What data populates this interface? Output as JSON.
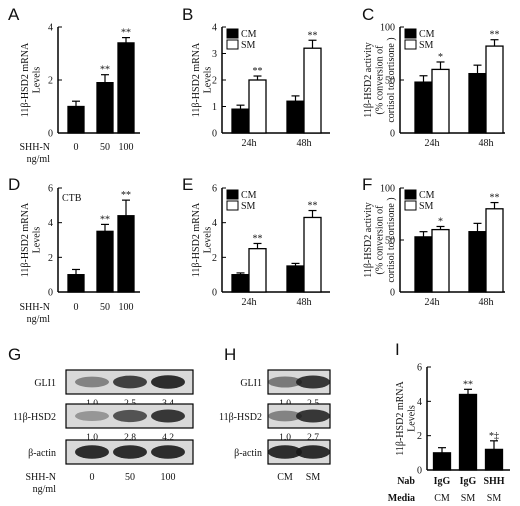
{
  "colors": {
    "filled": "#000000",
    "open": "#ffffff",
    "blot_bg": "#d9d9d9",
    "blot_band": "#1a1a1a"
  },
  "chart_data": [
    {
      "panel": "A",
      "type": "bar",
      "categories": [
        "0",
        "50",
        "100"
      ],
      "values": [
        1.0,
        1.9,
        3.4
      ],
      "errors": [
        0.2,
        0.3,
        0.2
      ],
      "significance": [
        "",
        "**",
        "**"
      ],
      "ylabel_lines": [
        "11β-HSD2 mRNA",
        "Levels"
      ],
      "ylim": [
        0,
        4
      ],
      "yticks": [
        "0",
        "2",
        "4"
      ],
      "xlabel_lines": [
        "SHH-N",
        "ng/ml"
      ],
      "annotation": ""
    },
    {
      "panel": "B",
      "type": "bar",
      "categories": [
        "24h",
        "48h"
      ],
      "series": [
        {
          "name": "CM",
          "values": [
            0.9,
            1.2
          ],
          "errors": [
            0.15,
            0.2
          ],
          "significance": [
            "",
            ""
          ]
        },
        {
          "name": "SM",
          "values": [
            2.0,
            3.2
          ],
          "errors": [
            0.15,
            0.3
          ],
          "significance": [
            "**",
            "**"
          ]
        }
      ],
      "ylabel_lines": [
        "11β-HSD2 mRNA",
        "Levels"
      ],
      "ylim": [
        0,
        4
      ],
      "yticks": [
        "0",
        "1",
        "2",
        "3",
        "4"
      ],
      "legend_position": "top-left"
    },
    {
      "panel": "C",
      "type": "bar",
      "categories": [
        "24h",
        "48h"
      ],
      "series": [
        {
          "name": "CM",
          "values": [
            48,
            56
          ],
          "errors": [
            6,
            8
          ],
          "significance": [
            "",
            ""
          ]
        },
        {
          "name": "SM",
          "values": [
            60,
            82
          ],
          "errors": [
            7,
            6
          ],
          "significance": [
            "*",
            "**"
          ]
        }
      ],
      "ylabel_lines": [
        "11β-HSD2 activity",
        "(% conversion of",
        "cortisol to cortisone )"
      ],
      "ylim": [
        0,
        100
      ],
      "yticks": [
        "0",
        "50",
        "100"
      ],
      "legend_position": "top-left"
    },
    {
      "panel": "D",
      "type": "bar",
      "categories": [
        "0",
        "50",
        "100"
      ],
      "values": [
        1.0,
        3.5,
        4.4
      ],
      "errors": [
        0.3,
        0.4,
        0.9
      ],
      "significance": [
        "",
        "**",
        "**"
      ],
      "ylabel_lines": [
        "11β-HSD2 mRNA",
        "Levels"
      ],
      "ylim": [
        0,
        6
      ],
      "yticks": [
        "0",
        "2",
        "4",
        "6"
      ],
      "xlabel_lines": [
        "SHH-N",
        "ng/ml"
      ],
      "annotation": "CTB"
    },
    {
      "panel": "E",
      "type": "bar",
      "categories": [
        "24h",
        "48h"
      ],
      "series": [
        {
          "name": "CM",
          "values": [
            1.0,
            1.5
          ],
          "errors": [
            0.1,
            0.15
          ],
          "significance": [
            "",
            ""
          ]
        },
        {
          "name": "SM",
          "values": [
            2.5,
            4.3
          ],
          "errors": [
            0.3,
            0.4
          ],
          "significance": [
            "**",
            "**"
          ]
        }
      ],
      "ylabel_lines": [
        "11β-HSD2 mRNA",
        "Levels"
      ],
      "ylim": [
        0,
        6
      ],
      "yticks": [
        "0",
        "2",
        "4",
        "6"
      ],
      "legend_position": "top-left"
    },
    {
      "panel": "F",
      "type": "bar",
      "categories": [
        "24h",
        "48h"
      ],
      "series": [
        {
          "name": "CM",
          "values": [
            53,
            58
          ],
          "errors": [
            5,
            8
          ],
          "significance": [
            "",
            ""
          ]
        },
        {
          "name": "SM",
          "values": [
            60,
            80
          ],
          "errors": [
            3,
            6
          ],
          "significance": [
            "*",
            "**"
          ]
        }
      ],
      "ylabel_lines": [
        "11β-HSD2 activity",
        "(% conversion of",
        "cortisol to cortisone )"
      ],
      "ylim": [
        0,
        100
      ],
      "yticks": [
        "0",
        "50",
        "100"
      ],
      "legend_position": "top-left"
    },
    {
      "panel": "I",
      "type": "bar",
      "categories": [
        "IgG|CM",
        "IgG|SM",
        "SHH|SM"
      ],
      "values": [
        1.0,
        4.4,
        1.2
      ],
      "errors": [
        0.3,
        0.3,
        0.5
      ],
      "significance": [
        "",
        "**",
        "*‡"
      ],
      "ylabel_lines": [
        "11β-HSD2 mRNA",
        "Levels"
      ],
      "ylim": [
        0,
        6
      ],
      "yticks": [
        "0",
        "2",
        "4",
        "6"
      ],
      "row_labels": [
        "Nab",
        "Media"
      ],
      "row_values": [
        [
          "IgG",
          "IgG",
          "SHH"
        ],
        [
          "CM",
          "SM",
          "SM"
        ]
      ]
    }
  ],
  "blots": [
    {
      "panel": "G",
      "rows": [
        {
          "label": "GLI1",
          "intensity": [
            0.45,
            0.8,
            0.9
          ],
          "quant": [
            "1.0",
            "2.5",
            "3.4"
          ]
        },
        {
          "label": "11β-HSD2",
          "intensity": [
            0.35,
            0.7,
            0.85
          ],
          "quant": [
            "1.0",
            "2.8",
            "4.2"
          ]
        },
        {
          "label": "β-actin",
          "intensity": [
            0.9,
            0.9,
            0.9
          ],
          "quant": []
        }
      ],
      "lanes": [
        "0",
        "50",
        "100"
      ],
      "xlabel_lines": [
        "SHH-N",
        "ng/ml"
      ]
    },
    {
      "panel": "H",
      "rows": [
        {
          "label": "GLI1",
          "intensity": [
            0.5,
            0.85
          ],
          "quant": [
            "1.0",
            "2.5"
          ]
        },
        {
          "label": "11β-HSD2",
          "intensity": [
            0.45,
            0.85
          ],
          "quant": [
            "1.0",
            "2.7"
          ]
        },
        {
          "label": "β-actin",
          "intensity": [
            0.9,
            0.9
          ],
          "quant": []
        }
      ],
      "lanes": [
        "CM",
        "SM"
      ]
    }
  ]
}
